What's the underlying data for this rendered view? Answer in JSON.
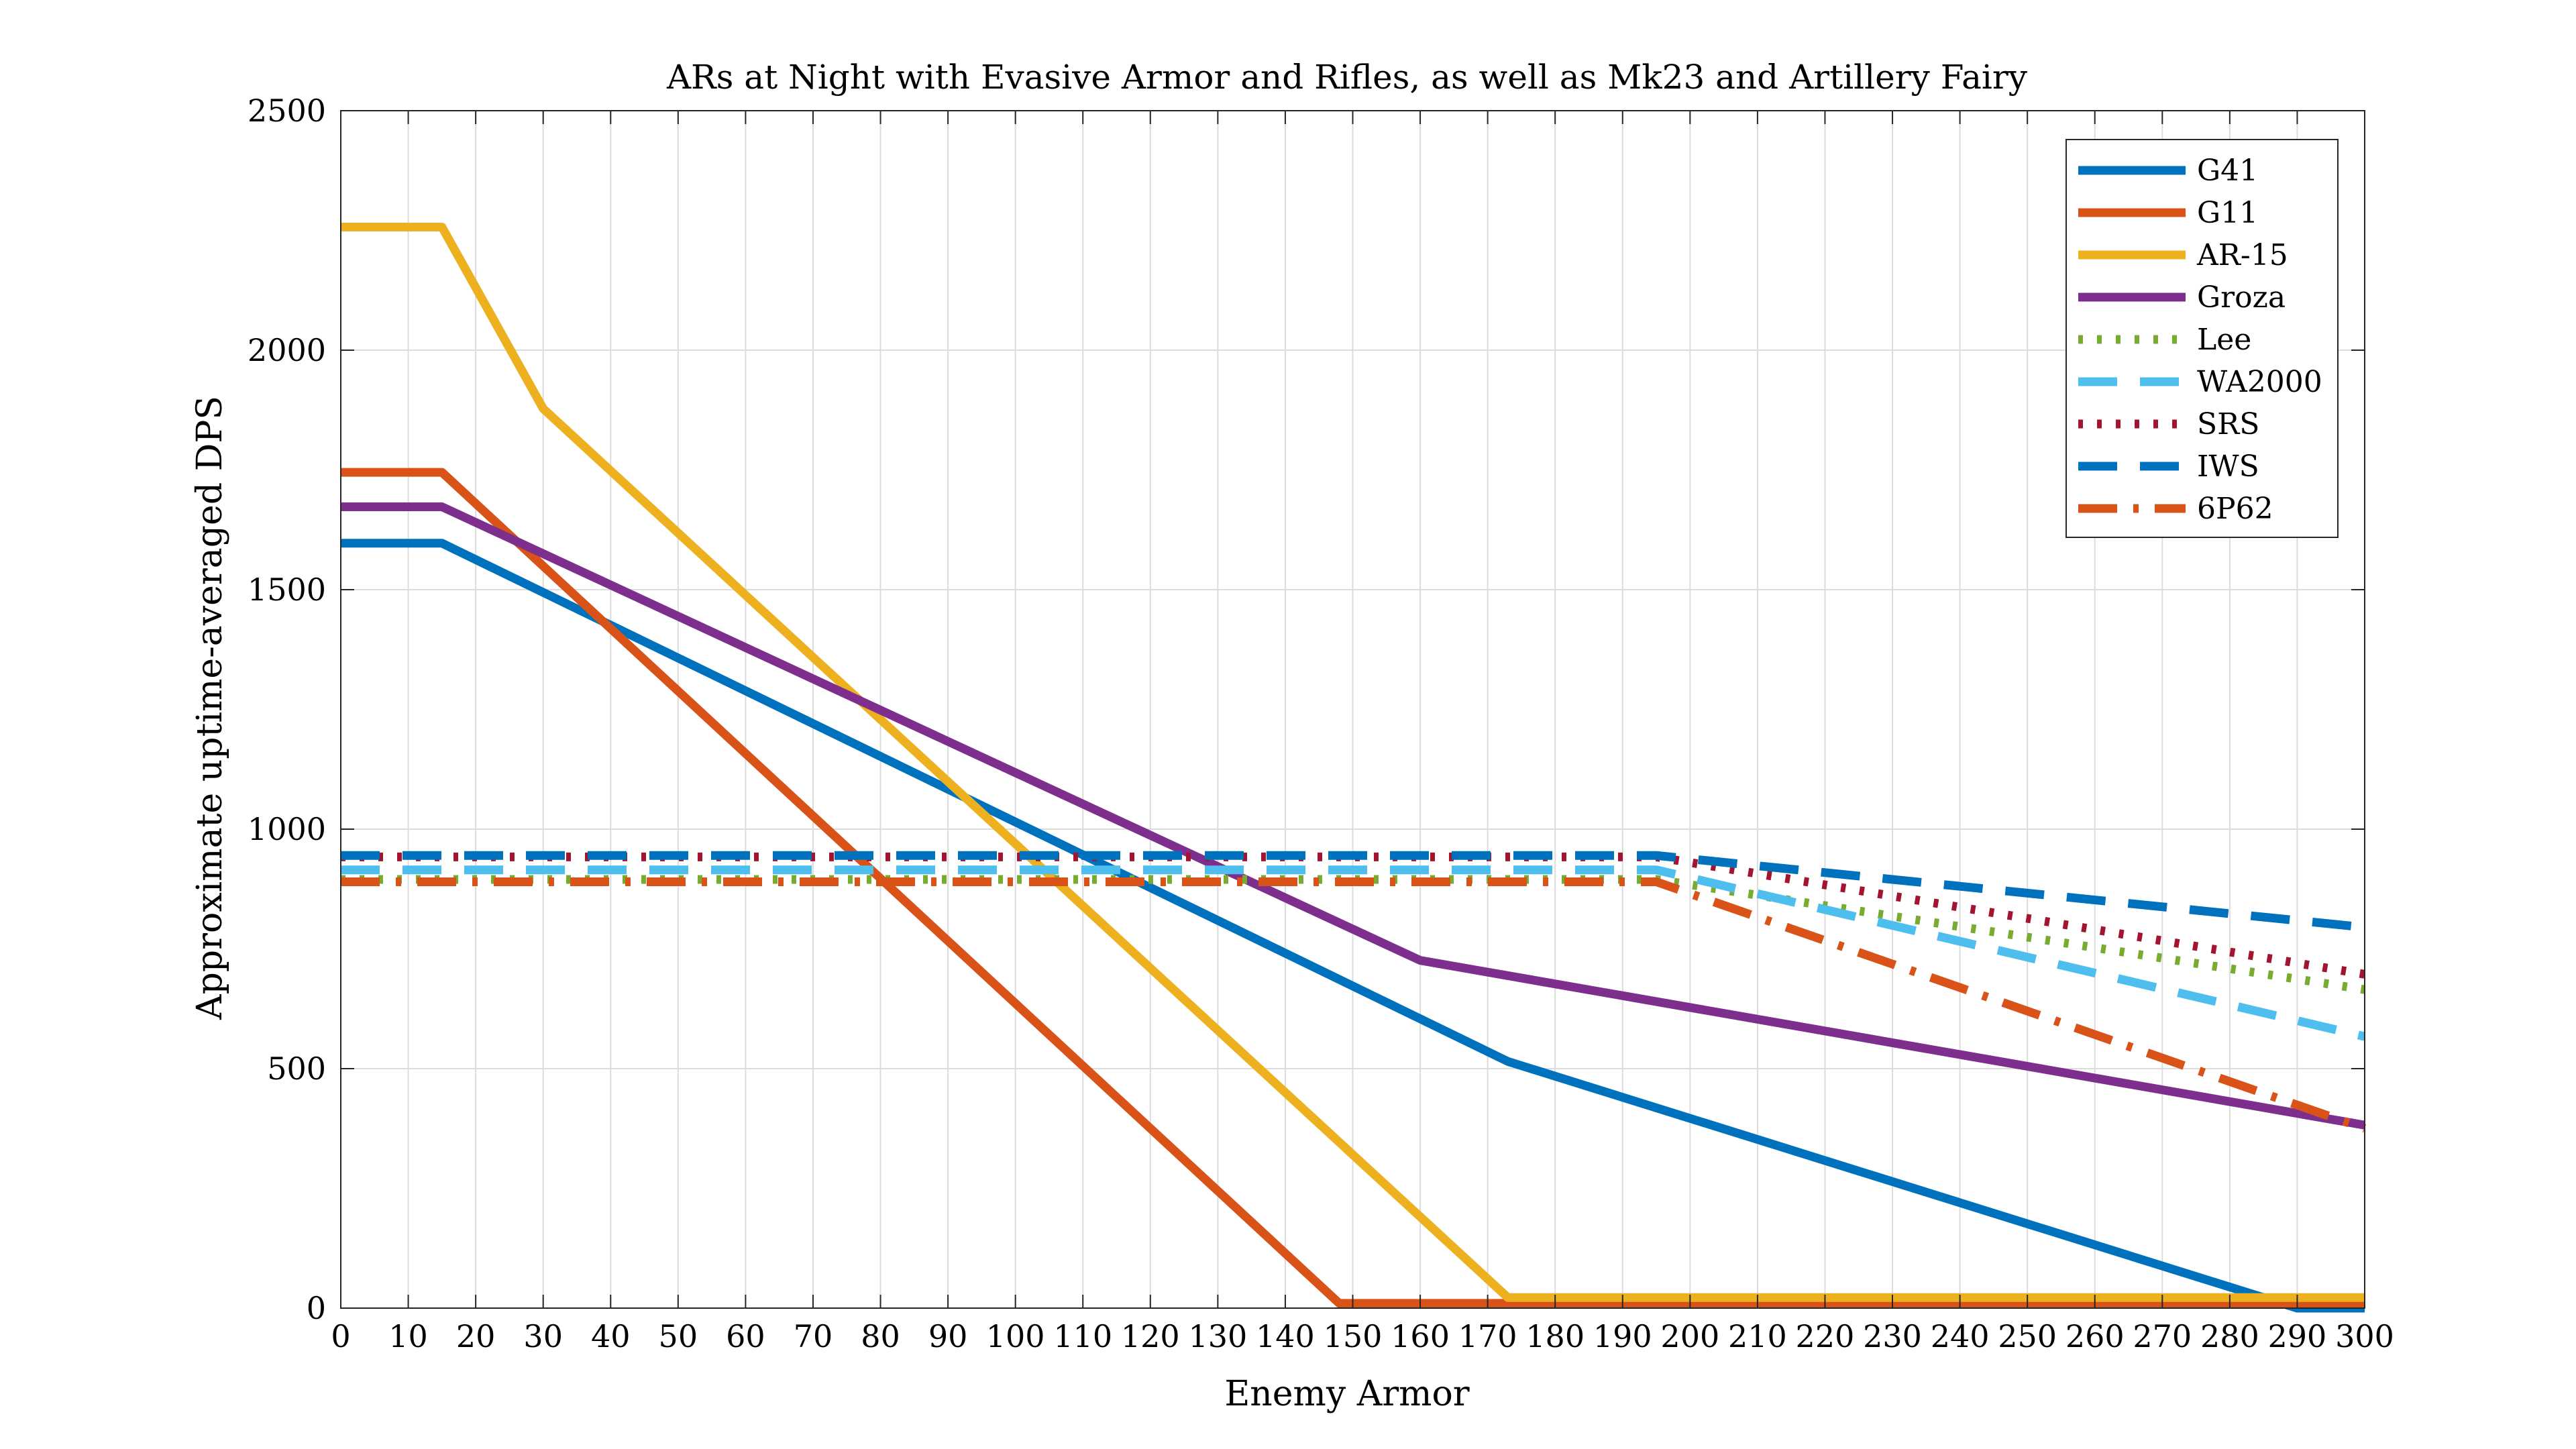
{
  "chart_data": {
    "type": "line",
    "title": "ARs at Night with Evasive Armor and Rifles, as well as Mk23 and Artillery Fairy",
    "xlabel": "Enemy Armor",
    "ylabel": "Approximate uptime-averaged DPS",
    "xlim": [
      0,
      300
    ],
    "ylim": [
      0,
      2500
    ],
    "xticks": [
      0,
      10,
      20,
      30,
      40,
      50,
      60,
      70,
      80,
      90,
      100,
      110,
      120,
      130,
      140,
      150,
      160,
      170,
      180,
      190,
      200,
      210,
      220,
      230,
      240,
      250,
      260,
      270,
      280,
      290,
      300
    ],
    "yticks": [
      0,
      500,
      1000,
      1500,
      2000,
      2500
    ],
    "grid": true,
    "legend_position": "top-right",
    "series": [
      {
        "name": "G41",
        "color": "#0072BD",
        "style": "solid",
        "x": [
          0,
          15,
          173,
          290,
          300
        ],
        "y": [
          1597,
          1597,
          515,
          0,
          0
        ]
      },
      {
        "name": "G11",
        "color": "#D95319",
        "style": "solid",
        "x": [
          0,
          15,
          148,
          300
        ],
        "y": [
          1745,
          1745,
          10,
          10
        ]
      },
      {
        "name": "AR-15",
        "color": "#EDB120",
        "style": "solid",
        "x": [
          0,
          15,
          30,
          173,
          300
        ],
        "y": [
          2257,
          2257,
          1878,
          22,
          22
        ]
      },
      {
        "name": "Groza",
        "color": "#7E2F8E",
        "style": "solid",
        "x": [
          0,
          15,
          160,
          300
        ],
        "y": [
          1673,
          1673,
          726,
          382
        ]
      },
      {
        "name": "Lee",
        "color": "#77AC30",
        "style": "dotted",
        "x": [
          0,
          195,
          300
        ],
        "y": [
          895,
          895,
          665
        ]
      },
      {
        "name": "WA2000",
        "color": "#4DBEEE",
        "style": "dashed",
        "x": [
          0,
          195,
          300
        ],
        "y": [
          915,
          915,
          567
        ]
      },
      {
        "name": "SRS",
        "color": "#A2142F",
        "style": "dotted",
        "x": [
          0,
          195,
          300
        ],
        "y": [
          942,
          942,
          697
        ]
      },
      {
        "name": "IWS",
        "color": "#0072BD",
        "style": "dashed",
        "x": [
          0,
          195,
          300
        ],
        "y": [
          945,
          945,
          795
        ]
      },
      {
        "name": "6P62",
        "color": "#D95319",
        "style": "dashdot",
        "x": [
          0,
          195,
          300
        ],
        "y": [
          890,
          890,
          375
        ]
      }
    ]
  }
}
